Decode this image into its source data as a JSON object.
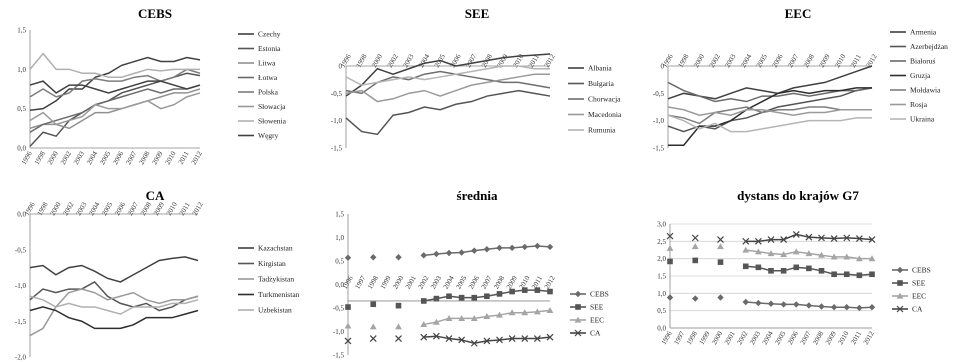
{
  "chart_data": [
    {
      "type": "line",
      "title": "CEBS",
      "x": [
        "1996",
        "1998",
        "2000",
        "2002",
        "2003",
        "2004",
        "2005",
        "2006",
        "2007",
        "2008",
        "2009",
        "2010",
        "2011",
        "2012"
      ],
      "ylim": [
        0,
        1.5
      ],
      "yticks": [
        "0,0",
        "0,5",
        "1,0",
        "1,5"
      ],
      "grid": false,
      "legend_position": "right",
      "colors": [
        "#404040",
        "#555555",
        "#909090",
        "#6a6a6a",
        "#7d7d7d",
        "#9a9a9a",
        "#b0b0b0"
      ],
      "series": [
        {
          "name": "Czechy",
          "values": [
            0.48,
            0.5,
            0.6,
            0.75,
            0.75,
            0.9,
            0.95,
            1.05,
            1.1,
            1.15,
            1.1,
            1.1,
            1.15,
            1.12
          ]
        },
        {
          "name": "Estonia",
          "values": [
            0.02,
            0.2,
            0.15,
            0.35,
            0.45,
            0.55,
            0.6,
            0.7,
            0.75,
            0.8,
            0.85,
            0.9,
            0.95,
            0.92
          ]
        },
        {
          "name": "Litwa",
          "values": [
            0.25,
            0.3,
            0.3,
            0.25,
            0.35,
            0.45,
            0.45,
            0.5,
            0.55,
            0.6,
            0.65,
            0.7,
            0.7,
            0.75
          ]
        },
        {
          "name": "Łotwa",
          "values": [
            0.2,
            0.3,
            0.35,
            0.4,
            0.45,
            0.55,
            0.6,
            0.65,
            0.7,
            0.75,
            0.7,
            0.75,
            0.75,
            0.8
          ]
        },
        {
          "name": "Polska",
          "values": [
            0.65,
            0.75,
            0.65,
            0.7,
            0.85,
            0.88,
            0.85,
            0.85,
            0.9,
            0.92,
            0.85,
            0.9,
            1.0,
            0.95
          ]
        },
        {
          "name": "Słowacja",
          "values": [
            0.35,
            0.45,
            0.3,
            0.35,
            0.4,
            0.55,
            0.5,
            0.5,
            0.55,
            0.6,
            0.5,
            0.55,
            0.65,
            0.7
          ]
        },
        {
          "name": "Słowenia",
          "values": [
            1.0,
            1.2,
            1.0,
            1.0,
            0.95,
            0.95,
            0.9,
            0.9,
            0.95,
            1.0,
            0.98,
            1.0,
            1.0,
            1.0
          ]
        },
        {
          "name": "Węgry",
          "values": [
            0.8,
            0.85,
            0.7,
            0.8,
            0.8,
            0.75,
            0.7,
            0.75,
            0.8,
            0.85,
            0.85,
            0.8,
            0.75,
            0.8
          ]
        }
      ]
    },
    {
      "type": "line",
      "title": "SEE",
      "x": [
        "1996",
        "1998",
        "2000",
        "2002",
        "2003",
        "2004",
        "2005",
        "2006",
        "2007",
        "2008",
        "2009",
        "2010",
        "2011",
        "2012"
      ],
      "ylim": [
        -1.5,
        0
      ],
      "yticks": [
        "0",
        "-0,5",
        "-1,0",
        "-1,5"
      ],
      "grid": false,
      "legend_position": "right",
      "colors": [
        "#404040",
        "#555555",
        "#6e6e6e",
        "#9a9a9a",
        "#b5b5b5"
      ],
      "series": [
        {
          "name": "Albania",
          "values": [
            -0.55,
            -0.35,
            -0.05,
            -0.15,
            -0.05,
            0.05,
            0.1,
            0.0,
            0.05,
            0.1,
            0.15,
            0.18,
            0.2,
            0.22
          ]
        },
        {
          "name": "Bułgaria",
          "values": [
            -0.95,
            -1.2,
            -1.25,
            -0.9,
            -0.85,
            -0.75,
            -0.8,
            -0.7,
            -0.65,
            -0.55,
            -0.5,
            -0.45,
            -0.5,
            -0.55
          ]
        },
        {
          "name": "Chorwacja",
          "values": [
            -0.45,
            -0.5,
            -0.3,
            -0.2,
            -0.25,
            -0.15,
            -0.1,
            -0.15,
            -0.2,
            -0.25,
            -0.3,
            -0.3,
            -0.35,
            -0.4
          ]
        },
        {
          "name": "Macedonia",
          "values": [
            -0.5,
            -0.45,
            -0.65,
            -0.6,
            -0.5,
            -0.45,
            -0.55,
            -0.45,
            -0.35,
            -0.3,
            -0.25,
            -0.2,
            -0.15,
            -0.15
          ]
        },
        {
          "name": "Rumunia",
          "values": [
            -0.2,
            -0.35,
            -0.3,
            -0.25,
            -0.2,
            -0.25,
            -0.2,
            -0.15,
            -0.1,
            -0.05,
            0.0,
            0.0,
            -0.05,
            -0.05
          ]
        }
      ]
    },
    {
      "type": "line",
      "title": "EEC",
      "x": [
        "1996",
        "1998",
        "2000",
        "2002",
        "2003",
        "2004",
        "2005",
        "2006",
        "2007",
        "2008",
        "2009",
        "2010",
        "2011",
        "2012"
      ],
      "ylim": [
        -1.5,
        0
      ],
      "yticks": [
        "0",
        "-0,5",
        "-1,0",
        "-1,5"
      ],
      "grid": false,
      "legend_position": "right",
      "colors": [
        "#404040",
        "#555555",
        "#6a6a6a",
        "#2e2e2e",
        "#7e7e7e",
        "#9a9a9a",
        "#b5b5b5"
      ],
      "series": [
        {
          "name": "Armenia",
          "values": [
            -0.6,
            -0.5,
            -0.55,
            -0.6,
            -0.5,
            -0.4,
            -0.45,
            -0.5,
            -0.4,
            -0.35,
            -0.3,
            -0.2,
            -0.1,
            0.0
          ]
        },
        {
          "name": "Azerbejdżan",
          "values": [
            -1.1,
            -1.2,
            -1.1,
            -1.15,
            -1.0,
            -0.95,
            -0.85,
            -0.75,
            -0.7,
            -0.65,
            -0.6,
            -0.55,
            -0.45,
            -0.4
          ]
        },
        {
          "name": "Białoruś",
          "values": [
            -0.3,
            -0.45,
            -0.55,
            -0.65,
            -0.6,
            -0.65,
            -0.55,
            -0.55,
            -0.5,
            -0.55,
            -0.5,
            -0.45,
            -0.45,
            -0.4
          ]
        },
        {
          "name": "Gruzja",
          "values": [
            -1.45,
            -1.45,
            -1.1,
            -1.1,
            -1.0,
            -0.8,
            -0.65,
            -0.5,
            -0.45,
            -0.5,
            -0.45,
            -0.45,
            -0.4,
            -0.4
          ]
        },
        {
          "name": "Mołdawia",
          "values": [
            -0.9,
            -0.95,
            -1.05,
            -0.85,
            -0.8,
            -0.75,
            -0.85,
            -0.8,
            -0.8,
            -0.75,
            -0.75,
            -0.8,
            -0.8,
            -0.8
          ]
        },
        {
          "name": "Rosja",
          "values": [
            -0.75,
            -0.8,
            -0.9,
            -0.85,
            -0.9,
            -0.8,
            -0.8,
            -0.85,
            -0.9,
            -0.85,
            -0.85,
            -0.8,
            -0.8,
            -0.8
          ]
        },
        {
          "name": "Ukraina",
          "values": [
            -0.9,
            -1.0,
            -1.15,
            -1.05,
            -1.2,
            -1.2,
            -1.15,
            -1.1,
            -1.05,
            -1.0,
            -1.0,
            -1.0,
            -0.95,
            -0.95
          ]
        }
      ]
    },
    {
      "type": "line",
      "title": "CA",
      "x": [
        "1996",
        "1998",
        "2000",
        "2002",
        "2003",
        "2004",
        "2005",
        "2006",
        "2007",
        "2008",
        "2009",
        "2010",
        "2011",
        "2012"
      ],
      "ylim": [
        -2.0,
        0
      ],
      "yticks": [
        "0,0",
        "-0,5",
        "-1,0",
        "-1,5",
        "-2,0"
      ],
      "grid": false,
      "legend_position": "right",
      "colors": [
        "#404040",
        "#555555",
        "#9a9a9a",
        "#2e2e2e",
        "#b0b0b0"
      ],
      "series": [
        {
          "name": "Kazachstan",
          "values": [
            -0.75,
            -0.72,
            -0.85,
            -0.75,
            -0.72,
            -0.8,
            -0.9,
            -0.95,
            -0.85,
            -0.75,
            -0.65,
            -0.62,
            -0.6,
            -0.65
          ]
        },
        {
          "name": "Kirgistan",
          "values": [
            -1.2,
            -1.05,
            -1.1,
            -1.05,
            -1.05,
            -0.95,
            -1.15,
            -1.25,
            -1.3,
            -1.25,
            -1.35,
            -1.3,
            -1.2,
            -1.15
          ]
        },
        {
          "name": "Tadżykistan",
          "values": [
            -1.7,
            -1.6,
            -1.3,
            -1.1,
            -1.05,
            -1.1,
            -1.2,
            -1.15,
            -1.1,
            -1.2,
            -1.25,
            -1.2,
            -1.2,
            -1.15
          ]
        },
        {
          "name": "Turkmenistan",
          "values": [
            -1.35,
            -1.3,
            -1.35,
            -1.45,
            -1.5,
            -1.6,
            -1.6,
            -1.6,
            -1.55,
            -1.45,
            -1.45,
            -1.45,
            -1.4,
            -1.35
          ]
        },
        {
          "name": "Uzbekistan",
          "values": [
            -1.15,
            -1.2,
            -1.3,
            -1.25,
            -1.3,
            -1.3,
            -1.35,
            -1.4,
            -1.3,
            -1.3,
            -1.3,
            -1.25,
            -1.25,
            -1.2
          ]
        }
      ]
    },
    {
      "type": "line",
      "title": "średnia",
      "x": [
        "1996",
        "1997",
        "1998",
        "1999",
        "2000",
        "2001",
        "2002",
        "2003",
        "2004",
        "2005",
        "2006",
        "2007",
        "2008",
        "2009",
        "2010",
        "2011",
        "2012"
      ],
      "ylim": [
        -1.5,
        1.5
      ],
      "yticks": [
        "1,5",
        "1,0",
        "0,5",
        "0,0",
        "-0,5",
        "-1,0",
        "-1,5"
      ],
      "grid": false,
      "legend_position": "right",
      "colors": [
        "#6a6a6a",
        "#555555",
        "#a5a5a5",
        "#444444"
      ],
      "markers": [
        "diamond",
        "square",
        "triangle",
        "x"
      ],
      "series": [
        {
          "name": "CEBS",
          "values": [
            0.57,
            null,
            0.58,
            null,
            0.58,
            null,
            0.62,
            0.65,
            0.67,
            0.68,
            0.72,
            0.75,
            0.78,
            0.78,
            0.8,
            0.82,
            0.8
          ]
        },
        {
          "name": "SEE",
          "values": [
            -0.48,
            null,
            -0.42,
            null,
            -0.45,
            null,
            -0.35,
            -0.3,
            -0.25,
            -0.28,
            -0.28,
            -0.25,
            -0.2,
            -0.15,
            -0.12,
            -0.12,
            -0.15
          ]
        },
        {
          "name": "EEC",
          "values": [
            -0.88,
            null,
            -0.9,
            null,
            -0.9,
            null,
            -0.85,
            -0.8,
            -0.72,
            -0.72,
            -0.72,
            -0.68,
            -0.65,
            -0.6,
            -0.6,
            -0.58,
            -0.55
          ]
        },
        {
          "name": "CA",
          "values": [
            -1.2,
            null,
            -1.15,
            null,
            -1.15,
            null,
            -1.12,
            -1.1,
            -1.15,
            -1.18,
            -1.25,
            -1.2,
            -1.18,
            -1.15,
            -1.15,
            -1.15,
            -1.12
          ]
        }
      ]
    },
    {
      "type": "line",
      "title": "dystans do krajów G7",
      "x": [
        "1996",
        "1997",
        "1998",
        "1999",
        "2000",
        "2001",
        "2002",
        "2003",
        "2004",
        "2005",
        "2006",
        "2007",
        "2008",
        "2009",
        "2010",
        "2011",
        "2012"
      ],
      "ylim": [
        0,
        3.0
      ],
      "yticks": [
        "3,0",
        "2,5",
        "2,0",
        "1,5",
        "1,0",
        "0,5",
        "0,0"
      ],
      "grid": true,
      "legend_position": "right",
      "colors": [
        "#6a6a6a",
        "#555555",
        "#a5a5a5",
        "#444444"
      ],
      "markers": [
        "diamond",
        "square",
        "triangle",
        "x"
      ],
      "series": [
        {
          "name": "CEBS",
          "values": [
            0.88,
            null,
            0.85,
            null,
            0.88,
            null,
            0.75,
            0.72,
            0.7,
            0.68,
            0.68,
            0.65,
            0.62,
            0.6,
            0.6,
            0.58,
            0.6
          ]
        },
        {
          "name": "SEE",
          "values": [
            1.92,
            null,
            1.95,
            null,
            1.9,
            null,
            1.78,
            1.75,
            1.65,
            1.65,
            1.75,
            1.72,
            1.65,
            1.55,
            1.55,
            1.52,
            1.55
          ]
        },
        {
          "name": "EEC",
          "values": [
            2.3,
            null,
            2.35,
            null,
            2.35,
            null,
            2.25,
            2.2,
            2.15,
            2.12,
            2.2,
            2.15,
            2.1,
            2.05,
            2.05,
            2.0,
            2.0
          ]
        },
        {
          "name": "CA",
          "values": [
            2.65,
            null,
            2.6,
            null,
            2.55,
            null,
            2.5,
            2.5,
            2.55,
            2.55,
            2.7,
            2.62,
            2.6,
            2.58,
            2.6,
            2.58,
            2.55
          ]
        }
      ]
    }
  ]
}
